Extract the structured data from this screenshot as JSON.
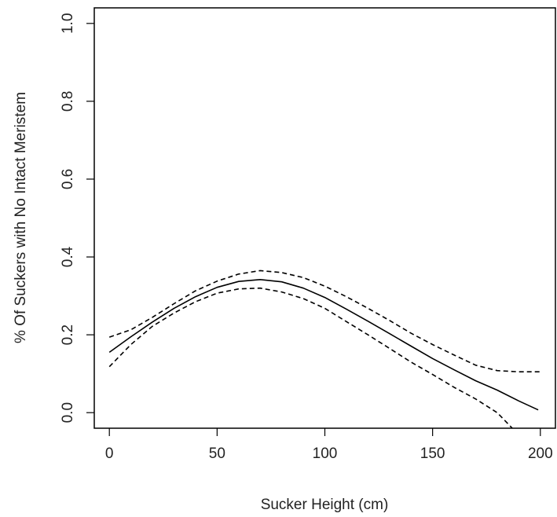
{
  "chart_data": {
    "type": "line",
    "title": "",
    "xlabel": "Sucker Height (cm)",
    "ylabel": "% Of Suckers with No Intact Meristem",
    "xlim": [
      -7,
      207
    ],
    "ylim": [
      -0.04,
      1.04
    ],
    "x_ticks": [
      0,
      50,
      100,
      150,
      200
    ],
    "x_tick_labels": [
      "0",
      "50",
      "100",
      "150",
      "200"
    ],
    "y_ticks": [
      0.0,
      0.2,
      0.4,
      0.6,
      0.8,
      1.0
    ],
    "y_tick_labels": [
      "0.0",
      "0.2",
      "0.4",
      "0.6",
      "0.8",
      "1.0"
    ],
    "grid": false,
    "legend": "none",
    "series": [
      {
        "style": "solid",
        "color": "#000000",
        "x": [
          0,
          10,
          20,
          30,
          40,
          50,
          60,
          70,
          80,
          90,
          100,
          110,
          120,
          130,
          140,
          150,
          160,
          170,
          180,
          190,
          199
        ],
        "y": [
          0.155,
          0.195,
          0.233,
          0.268,
          0.298,
          0.322,
          0.337,
          0.342,
          0.336,
          0.32,
          0.296,
          0.266,
          0.235,
          0.203,
          0.171,
          0.139,
          0.11,
          0.082,
          0.058,
          0.03,
          0.007
        ]
      },
      {
        "style": "dashed",
        "color": "#000000",
        "x": [
          0,
          10,
          20,
          30,
          40,
          50,
          60,
          70,
          80,
          90,
          100,
          110,
          120,
          130,
          140,
          150,
          160,
          170,
          180,
          190,
          200
        ],
        "y": [
          0.194,
          0.213,
          0.245,
          0.28,
          0.313,
          0.338,
          0.356,
          0.365,
          0.36,
          0.347,
          0.325,
          0.298,
          0.268,
          0.237,
          0.204,
          0.175,
          0.148,
          0.122,
          0.108,
          0.105,
          0.105
        ]
      },
      {
        "style": "dashed",
        "color": "#000000",
        "x": [
          0,
          10,
          20,
          30,
          40,
          50,
          60,
          70,
          80,
          90,
          100,
          110,
          120,
          130,
          140,
          150,
          160,
          170,
          180,
          187
        ],
        "y": [
          0.118,
          0.175,
          0.222,
          0.256,
          0.285,
          0.307,
          0.318,
          0.32,
          0.31,
          0.293,
          0.268,
          0.234,
          0.2,
          0.165,
          0.13,
          0.098,
          0.065,
          0.035,
          0.0,
          -0.04
        ]
      }
    ]
  }
}
